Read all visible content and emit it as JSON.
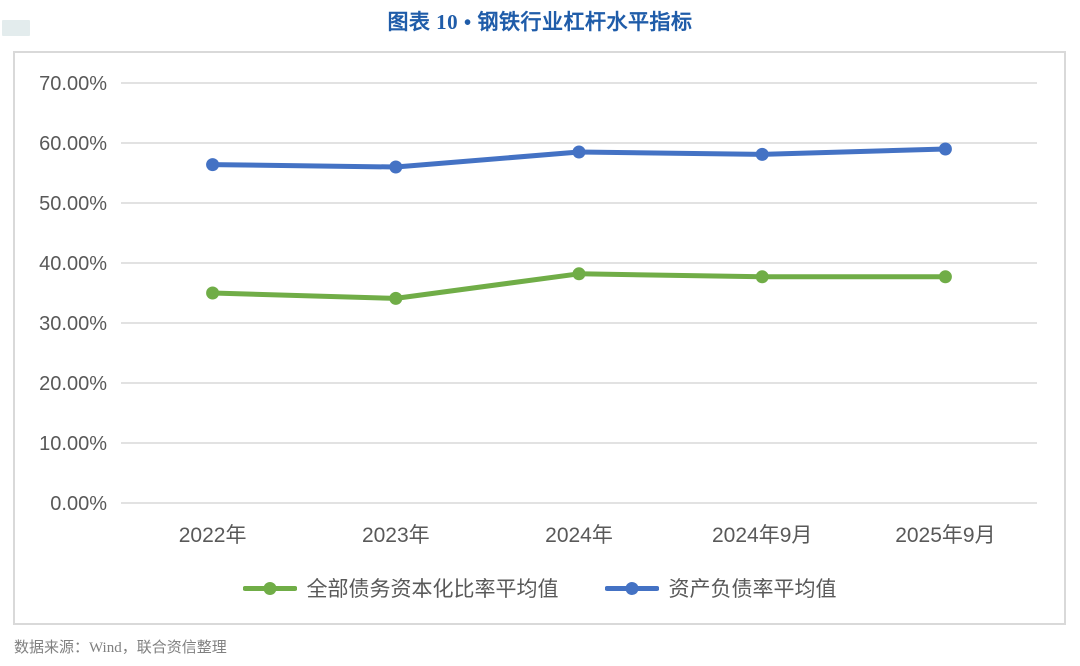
{
  "title": "图表 10 • 钢铁行业杠杆水平指标",
  "source_note": "数据来源：Wind，联合资信整理",
  "colors": {
    "title_text": "#1f5ca9",
    "series_green": "#70ad47",
    "series_blue": "#4472c4",
    "grid_line": "#d9d9d9",
    "chart_border": "#d9d9d9",
    "axis_text": "#595959",
    "legend_text": "#595959",
    "source_text": "#808080",
    "corner_mark": "#e3eced"
  },
  "chart_data": {
    "type": "line",
    "title": "图表 10 • 钢铁行业杠杆水平指标",
    "categories": [
      "2022年",
      "2023年",
      "2024年",
      "2024年9月",
      "2025年9月"
    ],
    "series": [
      {
        "name": "全部债务资本化比率平均值",
        "color_key": "series_green",
        "values": [
          35.0,
          34.1,
          38.2,
          37.7,
          37.7
        ]
      },
      {
        "name": "资产负债率平均值",
        "color_key": "series_blue",
        "values": [
          56.4,
          56.0,
          58.5,
          58.1,
          59.0
        ]
      }
    ],
    "xlabel": "",
    "ylabel": "",
    "ylim": [
      0,
      70
    ],
    "ytick_step": 10,
    "ytick_labels": [
      "0.00%",
      "10.00%",
      "20.00%",
      "30.00%",
      "40.00%",
      "50.00%",
      "60.00%",
      "70.00%"
    ],
    "grid": true,
    "legend_position": "bottom",
    "marker": "circle"
  }
}
